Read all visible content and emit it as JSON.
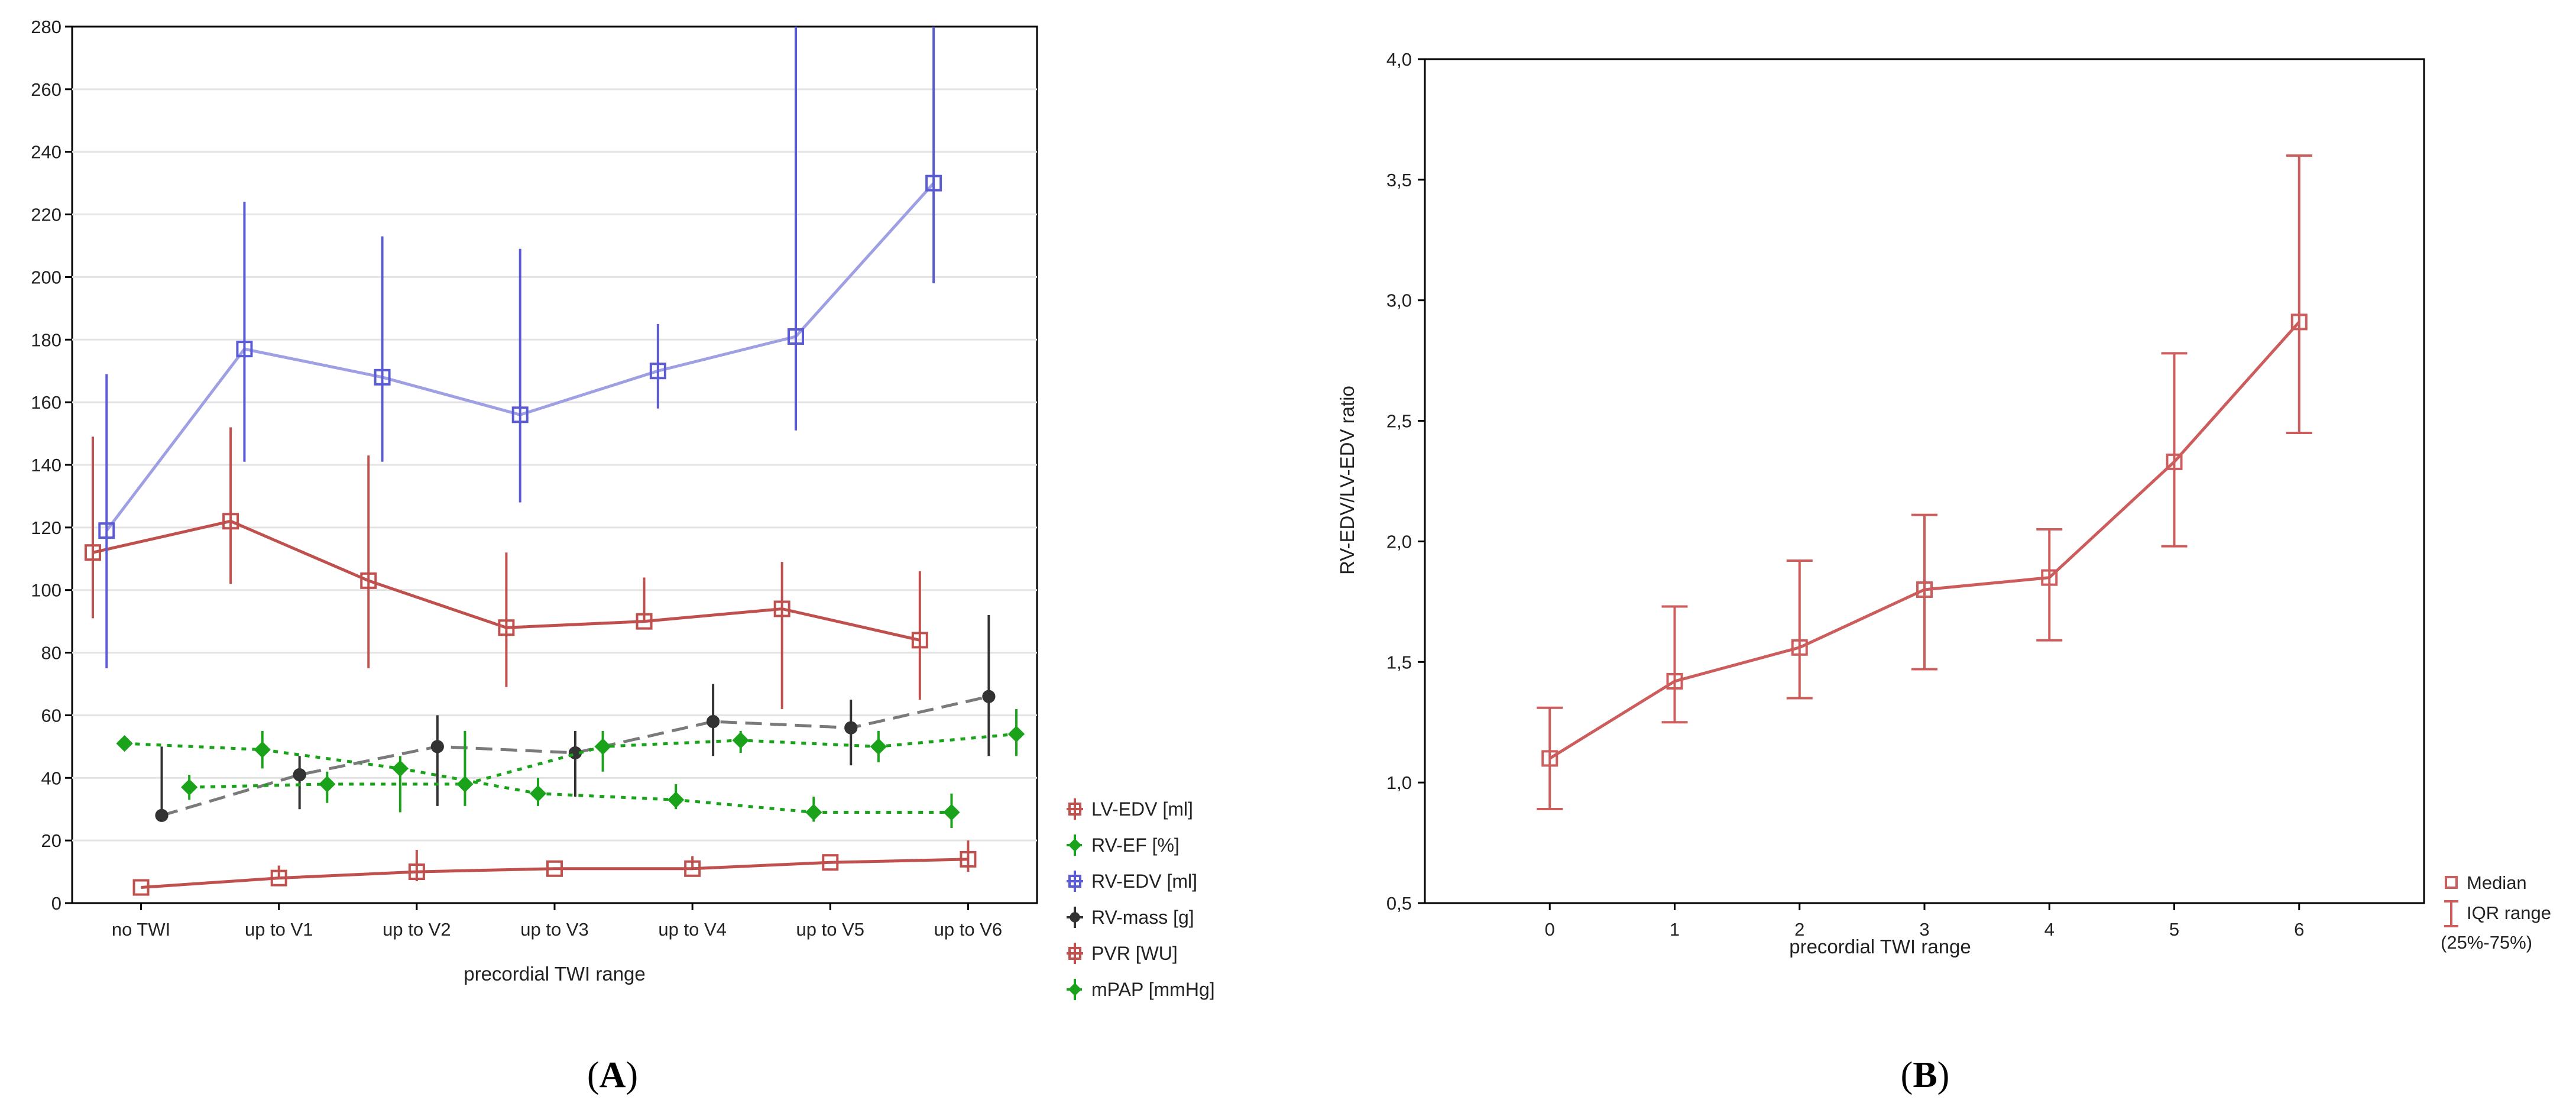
{
  "panel_labels": {
    "a_open": "(",
    "a_letter": "A",
    "a_close": ")",
    "b_open": "(",
    "b_letter": "B",
    "b_close": ")"
  },
  "colors": {
    "lv_edv": "#c0504d",
    "rv_ef": "#1aa31a",
    "rv_edv": "#5b5bd6",
    "rv_edv_line": "#9f9fe3",
    "rv_mass": "#333333",
    "rv_mass_line": "#7a7a7a",
    "pvr": "#c0504d",
    "mpap": "#1aa31a",
    "ratio": "#cd5c5c",
    "grid": "#e3e3e3",
    "axis": "#000000"
  },
  "chart_data": [
    {
      "type": "line",
      "panel": "A",
      "xlabel": "precordial TWI range",
      "ylabel": "",
      "categories": [
        "no TWI",
        "up to V1",
        "up to V2",
        "up to V3",
        "up to V4",
        "up to V5",
        "up to V6"
      ],
      "ylim": [
        0,
        280
      ],
      "yticks": [
        "0",
        "20",
        "40",
        "60",
        "80",
        "100",
        "120",
        "140",
        "160",
        "180",
        "200",
        "220",
        "240",
        "260",
        "280"
      ],
      "grid": true,
      "legend_position": "right",
      "series": [
        {
          "key": "lv_edv",
          "name": "LV-EDV [ml]",
          "marker": "square",
          "dash": "solid",
          "x_offset": -0.35,
          "values": [
            112,
            122,
            103,
            88,
            90,
            94,
            84
          ],
          "lower": [
            91,
            102,
            75,
            69,
            null,
            62,
            65
          ],
          "upper": [
            149,
            152,
            143,
            112,
            104,
            109,
            106
          ]
        },
        {
          "key": "rv_ef",
          "name": "RV-EF [%]",
          "marker": "diamond",
          "dash": "dotted",
          "x_offset": -0.12,
          "values": [
            51,
            49,
            43,
            35,
            33,
            29,
            29
          ],
          "lower": [
            null,
            43,
            29,
            31,
            30,
            26,
            24
          ],
          "upper": [
            null,
            55,
            47,
            40,
            38,
            34,
            35
          ]
        },
        {
          "key": "rv_edv",
          "name": "RV-EDV [ml]",
          "marker": "square",
          "dash": "solid",
          "x_offset": -0.25,
          "values": [
            119,
            177,
            168,
            156,
            170,
            181,
            230
          ],
          "lower": [
            75,
            141,
            141,
            128,
            158,
            151,
            198
          ],
          "upper": [
            169,
            224,
            213,
            209,
            185,
            280,
            280
          ]
        },
        {
          "key": "rv_mass",
          "name": "RV-mass [g]",
          "marker": "circle",
          "dash": "dashed",
          "x_offset": 0.15,
          "values": [
            28,
            41,
            50,
            48,
            58,
            56,
            66
          ],
          "lower": [
            null,
            30,
            31,
            34,
            47,
            44,
            47
          ],
          "upper": [
            50,
            47,
            60,
            55,
            70,
            65,
            92
          ]
        },
        {
          "key": "pvr",
          "name": "PVR [WU]",
          "marker": "square",
          "dash": "solid",
          "x_offset": 0.0,
          "values": [
            5,
            8,
            10,
            11,
            11,
            13,
            14
          ],
          "lower": [
            null,
            null,
            7,
            null,
            null,
            null,
            10
          ],
          "upper": [
            null,
            12,
            17,
            null,
            15,
            null,
            20
          ]
        },
        {
          "key": "mpap",
          "name": "mPAP [mmHg]",
          "marker": "diamond",
          "dash": "dotted",
          "x_offset": 0.35,
          "values": [
            37,
            38,
            38,
            50,
            52,
            50,
            54
          ],
          "lower": [
            33,
            32,
            31,
            42,
            48,
            45,
            47
          ],
          "upper": [
            41,
            42,
            55,
            55,
            55,
            55,
            62
          ]
        }
      ]
    },
    {
      "type": "line",
      "panel": "B",
      "xlabel": "precordial TWI range",
      "ylabel": "RV-EDV/LV-EDV ratio",
      "categories": [
        "0",
        "1",
        "2",
        "3",
        "4",
        "5",
        "6"
      ],
      "ylim": [
        0.5,
        4.0
      ],
      "yticks": [
        "0,5",
        "1,0",
        "1,5",
        "2,0",
        "2,5",
        "3,0",
        "3,5",
        "4,0"
      ],
      "grid": false,
      "legend_position": "bottom-right",
      "series": [
        {
          "key": "ratio",
          "name": "Median",
          "values": [
            1.1,
            1.42,
            1.56,
            1.8,
            1.85,
            2.33,
            2.91
          ],
          "lower": [
            0.89,
            1.25,
            1.35,
            1.47,
            1.59,
            1.98,
            2.45
          ],
          "upper": [
            1.31,
            1.73,
            1.92,
            2.11,
            2.05,
            2.78,
            3.6
          ]
        }
      ],
      "legend": {
        "median": "Median",
        "iqr_line1": "IQR range",
        "iqr_line2": "(25%-75%)"
      }
    }
  ]
}
